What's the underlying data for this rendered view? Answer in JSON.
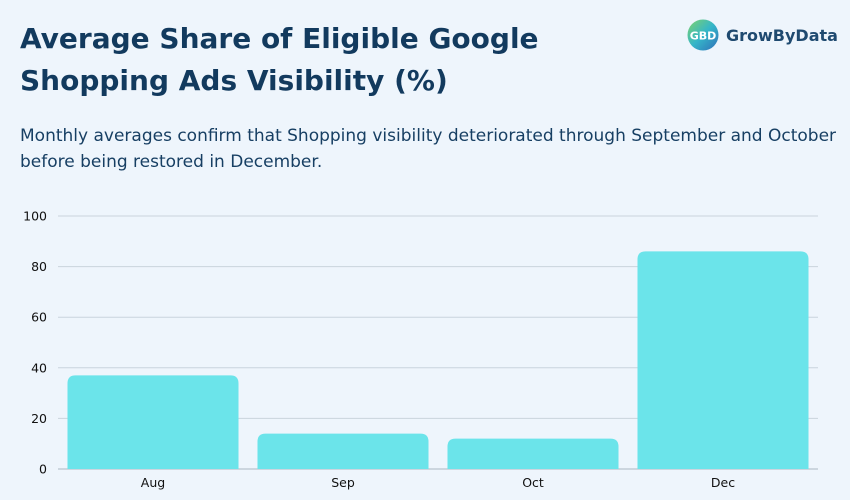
{
  "header": {
    "title": "Average Share of Eligible Google Shopping Ads Visibility (%)",
    "subtitle": "Monthly averages confirm that Shopping visibility deteriorated through September and October before being restored in December."
  },
  "brand": {
    "name": "GrowByData",
    "logo_icon": "gbd-logo-icon",
    "logo_text": "GBD"
  },
  "colors": {
    "bar": "#6be4ea",
    "title": "#123a5e",
    "grid": "#c9d3dd",
    "background": "#eef5fc"
  },
  "chart_data": {
    "type": "bar",
    "title": "Average Share of Eligible Google Shopping Ads Visibility (%)",
    "xlabel": "",
    "ylabel": "",
    "categories": [
      "Aug",
      "Sep",
      "Oct",
      "Dec"
    ],
    "values": [
      37,
      14,
      12,
      86
    ],
    "ylim": [
      0,
      100
    ],
    "yticks": [
      0,
      20,
      40,
      60,
      80,
      100
    ],
    "grid": true,
    "legend": "none"
  }
}
